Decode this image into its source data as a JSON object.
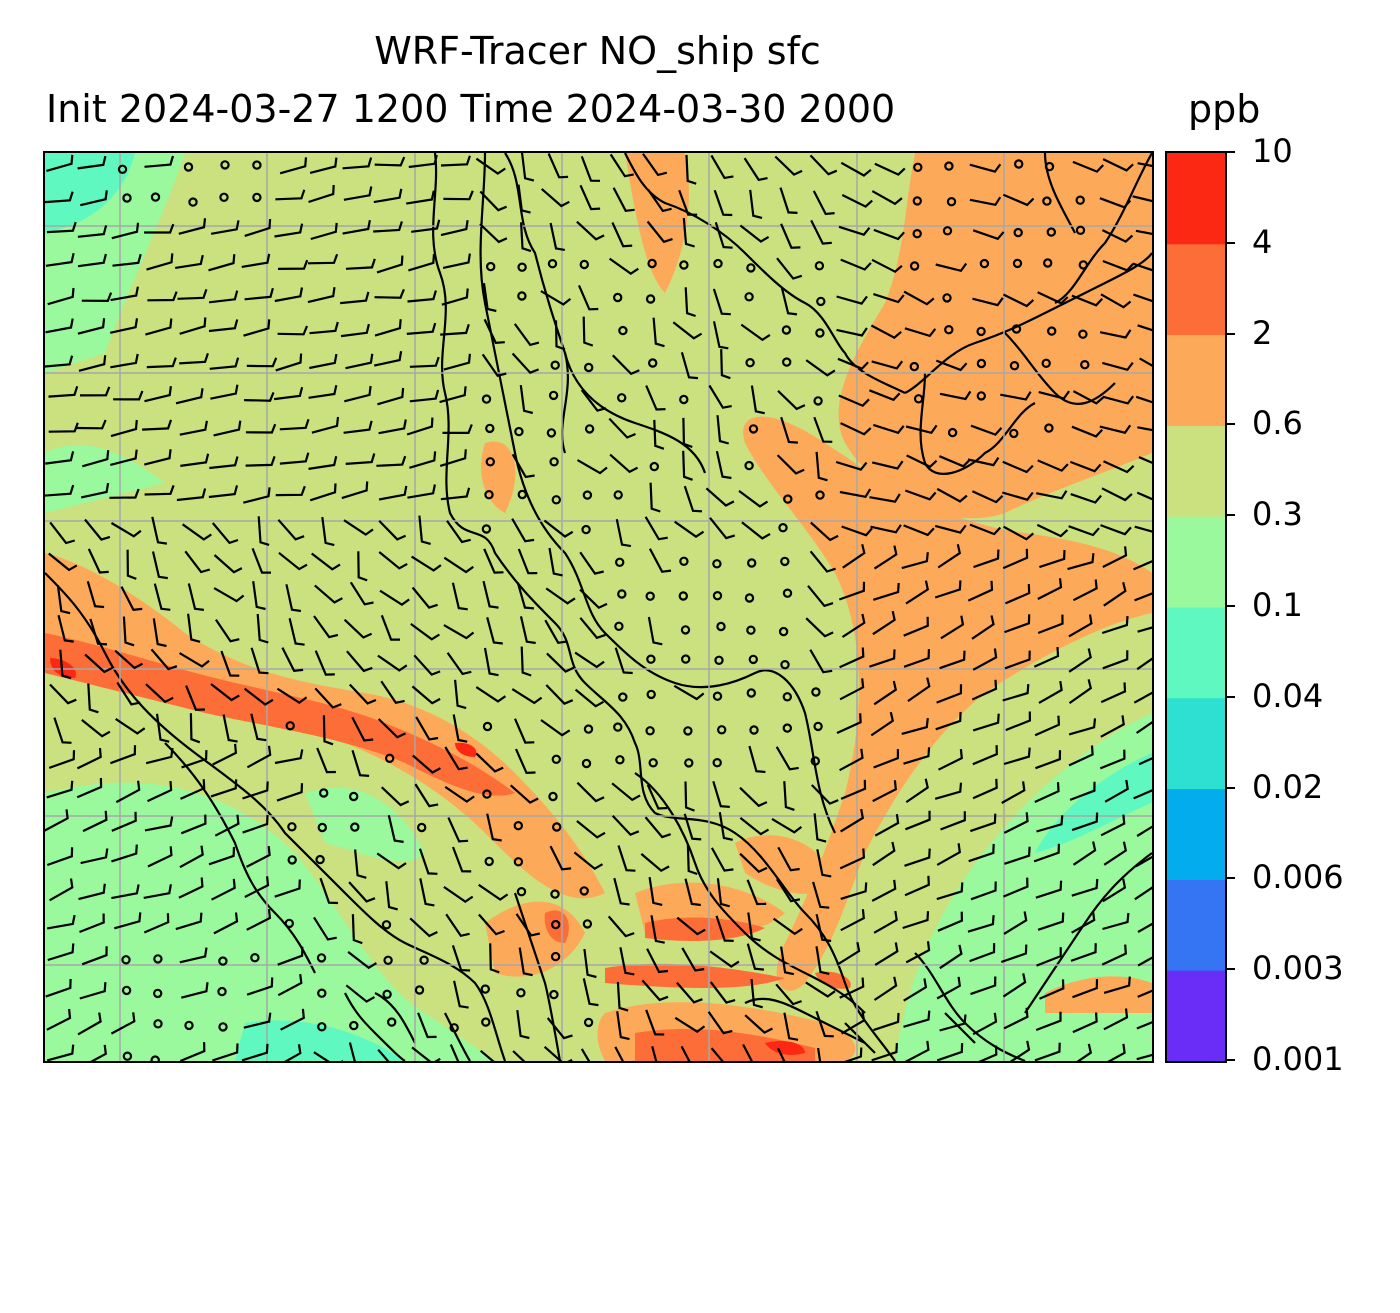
{
  "title": {
    "line1": "WRF-Tracer NO_ship sfc",
    "line2": "Init 2024-03-27 1200 Time 2024-03-30 2000",
    "units": "ppb"
  },
  "colorbar": {
    "levels": [
      "0.001",
      "0.003",
      "0.006",
      "0.02",
      "0.04",
      "0.1",
      "0.3",
      "0.6",
      "2",
      "4",
      "10"
    ],
    "colors": [
      "#6a2cf7",
      "#3574f2",
      "#03aded",
      "#2de0d2",
      "#60f8c1",
      "#9af99c",
      "#cbe07f",
      "#fcaa5a",
      "#fd6d37",
      "#fd2814"
    ]
  },
  "map": {
    "colors": {
      "background": "#cbe07f",
      "low": "#9af99c",
      "lower": "#60f8c1",
      "high": "#fcaa5a",
      "higher": "#fd6d37",
      "highest": "#fd2814",
      "coast": "#000000",
      "grid": "#a8a8a8",
      "barb": "#000000"
    }
  }
}
